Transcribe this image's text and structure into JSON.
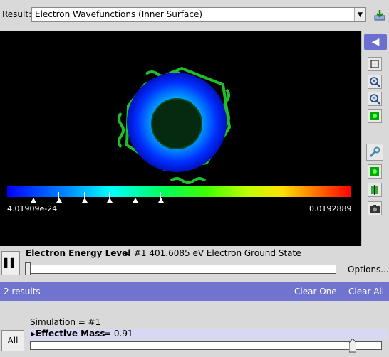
{
  "result": {
    "label": "Result:",
    "selected": "Electron Wavefunctions (Inner Surface)",
    "arrow_icon": "chevron-down-icon"
  },
  "colorbar": {
    "min_label": "4.01909e-24",
    "max_label": "0.0192889"
  },
  "energy": {
    "title": "Electron Energy Level",
    "value_text": "= #1  401.6085 eV Electron Ground State",
    "options_label": "Options...",
    "play_label": "▌▌"
  },
  "results": {
    "count": "2 results",
    "clear_one": "Clear One",
    "clear_all": "Clear All"
  },
  "simulation": {
    "label": "Simulation = #1",
    "param_name": "▸Effective Mass",
    "param_value": "= 0.91",
    "all_label": "All",
    "param_level": 0.91
  },
  "colors": {
    "accent": "#7074cf",
    "viewer_bg": "#000000"
  }
}
